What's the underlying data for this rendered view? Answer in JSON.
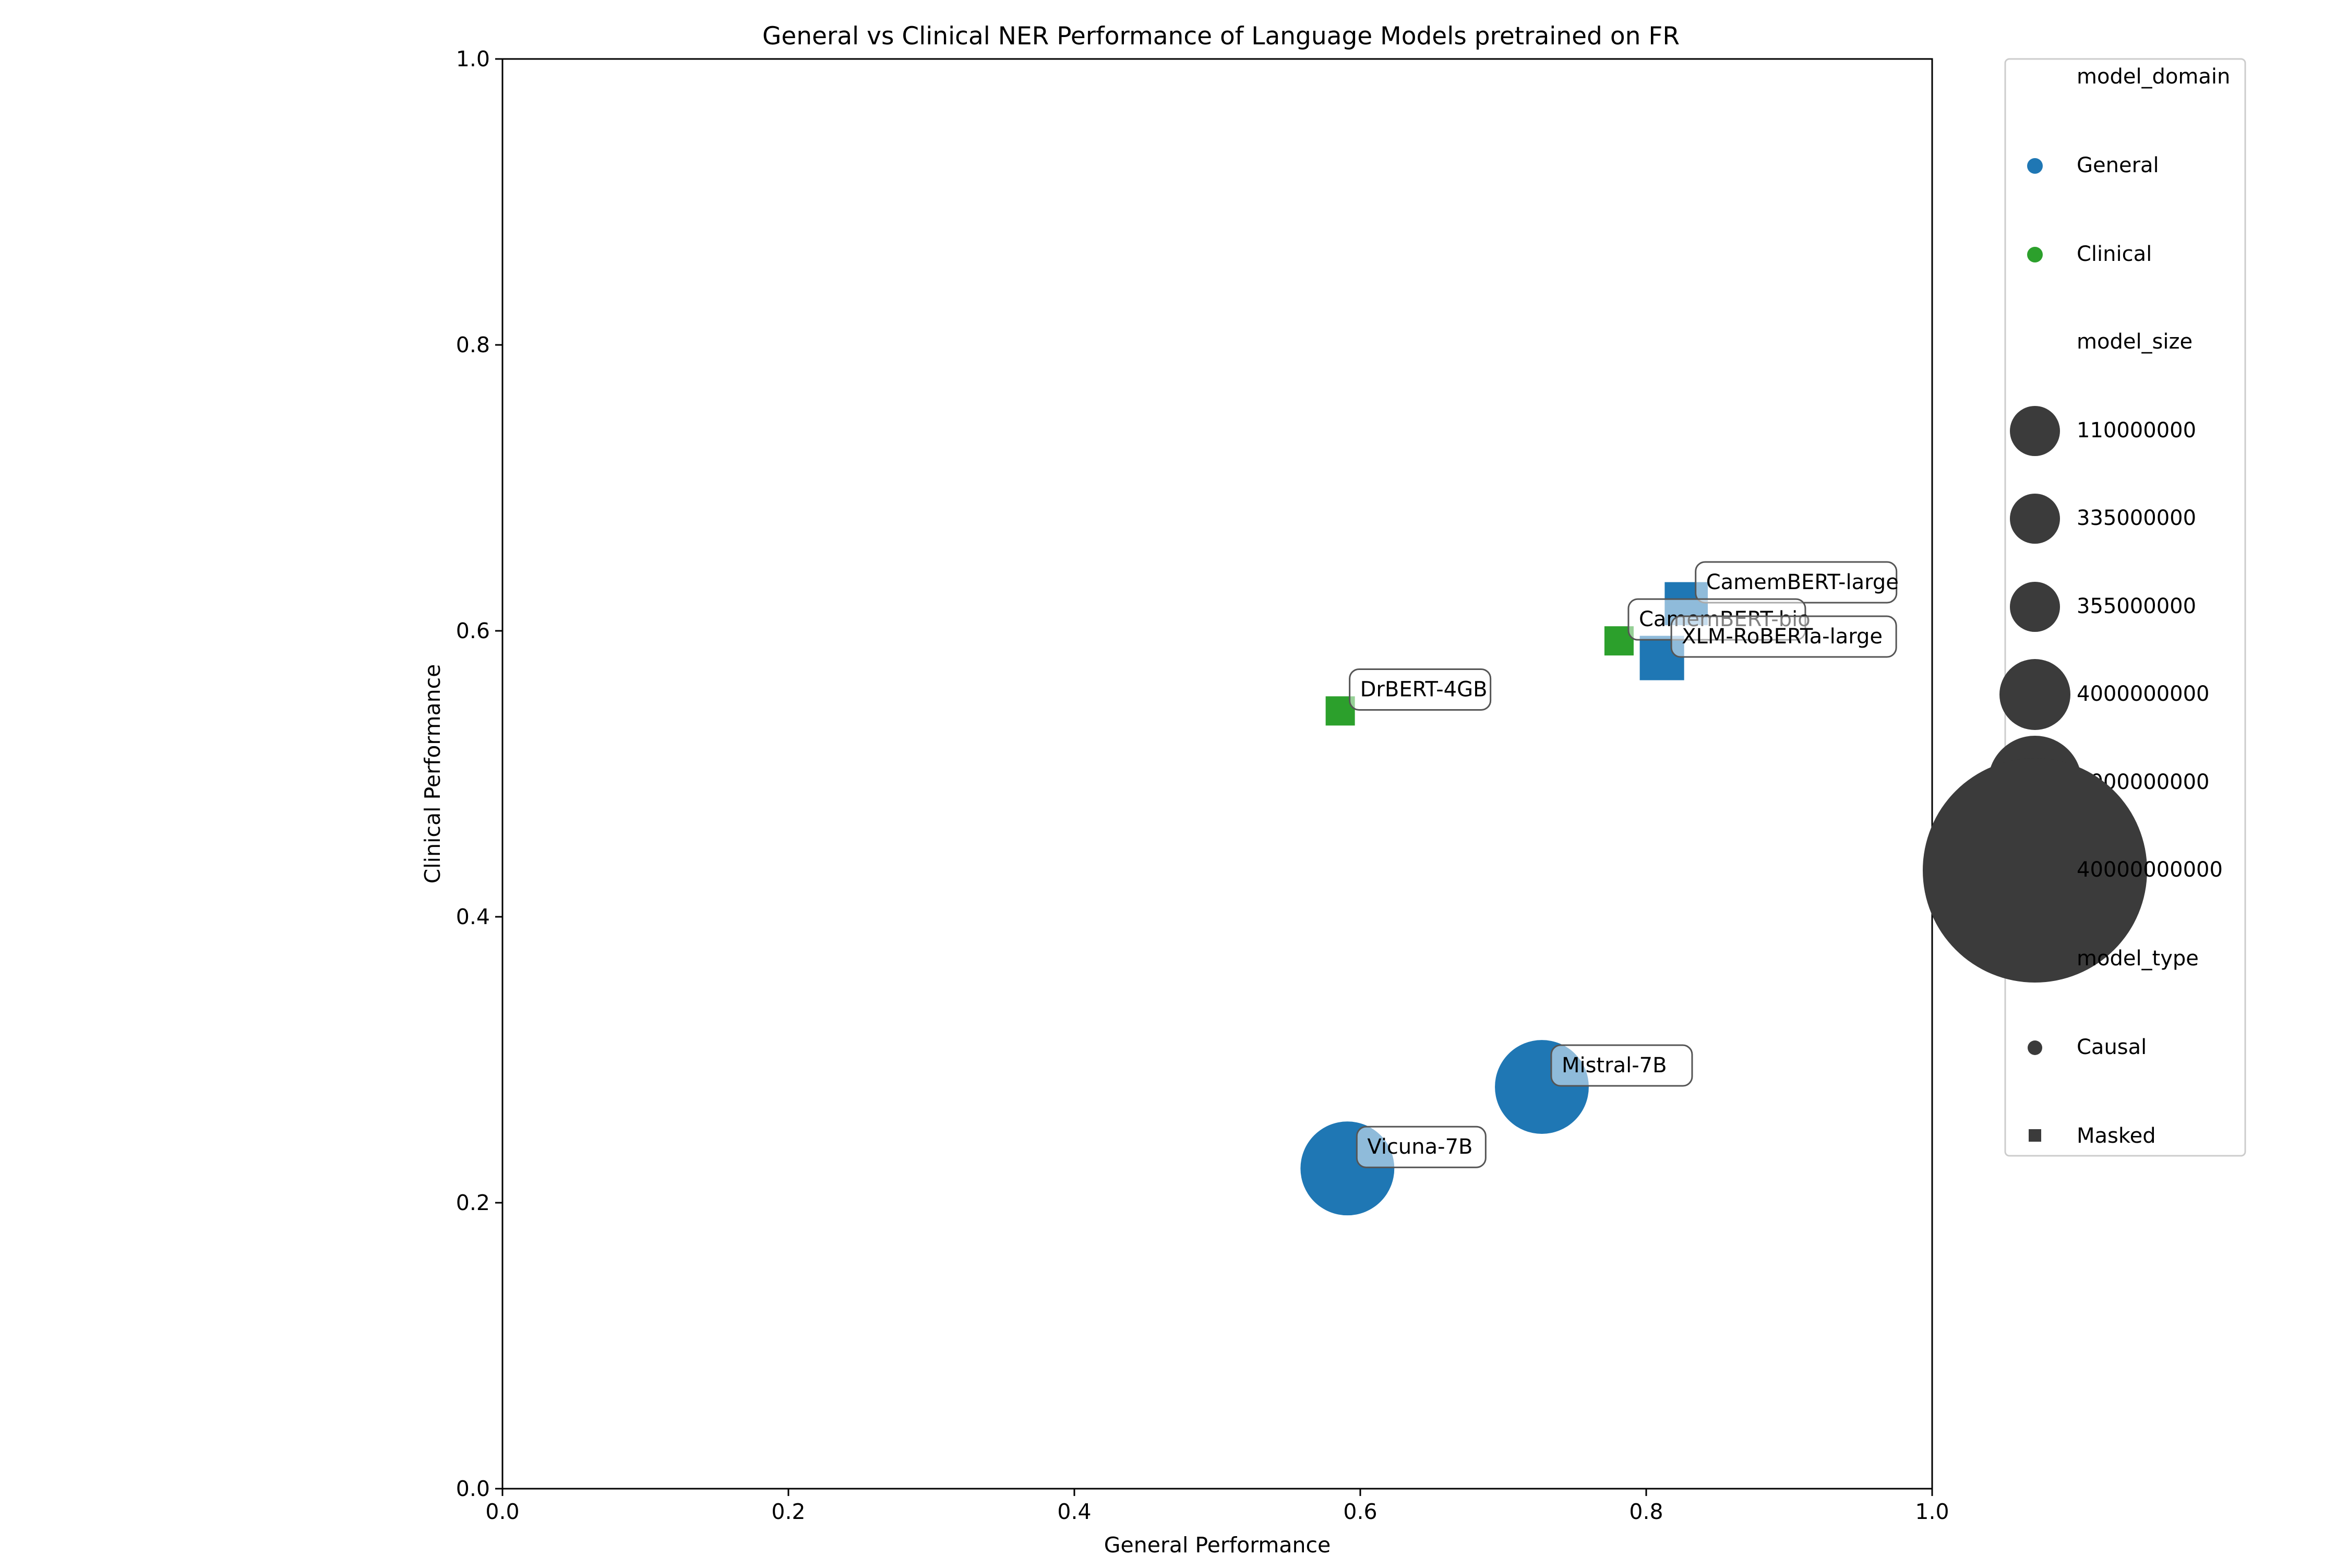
{
  "chart_data": {
    "type": "scatter",
    "title": "General vs Clinical NER Performance of Language Models pretrained on FR",
    "xlabel": "General Performance",
    "ylabel": "Clinical Performance",
    "xlim": [
      0,
      1
    ],
    "ylim": [
      0,
      1
    ],
    "xticks": [
      "0.0",
      "0.2",
      "0.4",
      "0.6",
      "0.8",
      "1.0"
    ],
    "yticks": [
      "0.0",
      "0.2",
      "0.4",
      "0.6",
      "0.8",
      "1.0"
    ],
    "grid": false,
    "legend_position": "outside-right",
    "colors": {
      "General": "#1f77b4",
      "Clinical": "#2ca02c",
      "legend_size": "#3b3b3b"
    },
    "points": [
      {
        "label": "CamemBERT-large",
        "x": 0.828,
        "y": 0.619,
        "model_domain": "General",
        "model_type": "Masked",
        "model_size": 335000000
      },
      {
        "label": "CamemBERT-bio",
        "x": 0.781,
        "y": 0.593,
        "model_domain": "Clinical",
        "model_type": "Masked",
        "model_size": 110000000
      },
      {
        "label": "XLM-RoBERTa-large",
        "x": 0.811,
        "y": 0.581,
        "model_domain": "General",
        "model_type": "Masked",
        "model_size": 355000000
      },
      {
        "label": "DrBERT-4GB",
        "x": 0.586,
        "y": 0.544,
        "model_domain": "Clinical",
        "model_type": "Masked",
        "model_size": 110000000
      },
      {
        "label": "Mistral-7B",
        "x": 0.727,
        "y": 0.281,
        "model_domain": "General",
        "model_type": "Causal",
        "model_size": 7000000000
      },
      {
        "label": "Vicuna-7B",
        "x": 0.591,
        "y": 0.224,
        "model_domain": "General",
        "model_type": "Causal",
        "model_size": 7000000000
      }
    ],
    "legend": {
      "domain_title": "model_domain",
      "domains": [
        "General",
        "Clinical"
      ],
      "size_title": "model_size",
      "sizes": [
        "110000000",
        "335000000",
        "355000000",
        "4000000000",
        "7000000000",
        "40000000000"
      ],
      "size_values": [
        110000000,
        335000000,
        355000000,
        4000000000,
        7000000000,
        40000000000
      ],
      "type_title": "model_type",
      "types": [
        "Causal",
        "Masked"
      ]
    }
  }
}
